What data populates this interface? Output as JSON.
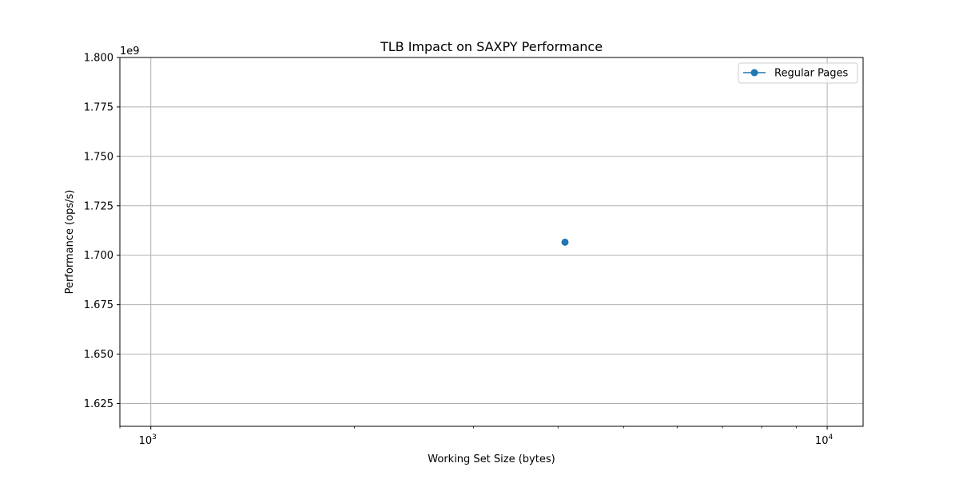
{
  "chart_data": {
    "type": "scatter",
    "title": "TLB Impact on SAXPY Performance",
    "xlabel": "Working Set Size (bytes)",
    "ylabel": "Performance (ops/s)",
    "y_offset_label": "1e9",
    "x_scale": "log",
    "xlim": [
      900,
      11300
    ],
    "ylim": [
      1.6135,
      1.8
    ],
    "x_ticks": [
      {
        "value": 1000,
        "base": "10",
        "exp": "3"
      },
      {
        "value": 10000,
        "base": "10",
        "exp": "4"
      }
    ],
    "y_ticks": [
      {
        "value": 1.625,
        "label": "1.625"
      },
      {
        "value": 1.65,
        "label": "1.650"
      },
      {
        "value": 1.675,
        "label": "1.675"
      },
      {
        "value": 1.7,
        "label": "1.700"
      },
      {
        "value": 1.725,
        "label": "1.725"
      },
      {
        "value": 1.75,
        "label": "1.750"
      },
      {
        "value": 1.775,
        "label": "1.775"
      },
      {
        "value": 1.8,
        "label": "1.800"
      }
    ],
    "series": [
      {
        "name": "Regular Pages",
        "color": "#1f77b4",
        "marker": "circle",
        "points": [
          {
            "x": 4096,
            "y": 1.7066
          }
        ]
      }
    ],
    "grid": true,
    "legend_position": "top-right"
  }
}
